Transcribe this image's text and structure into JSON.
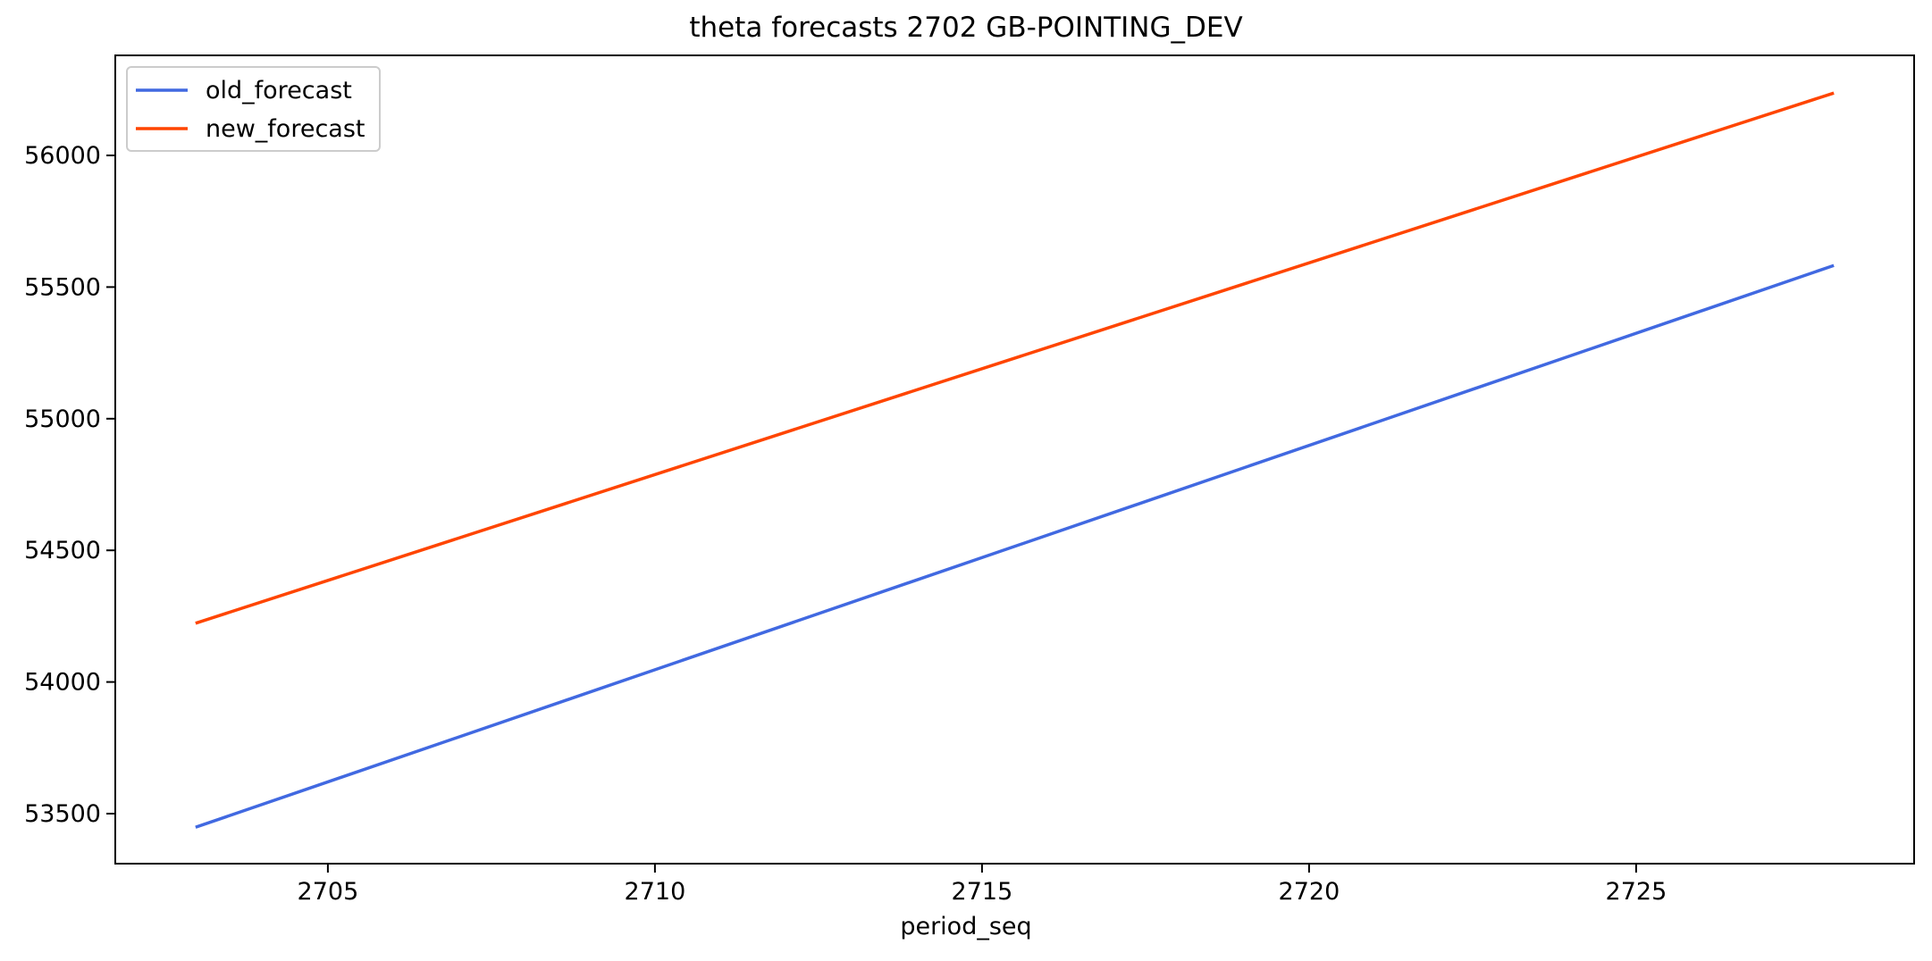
{
  "chart_data": {
    "type": "line",
    "title": "theta forecasts 2702 GB-POINTING_DEV",
    "xlabel": "period_seq",
    "ylabel": "",
    "xlim": [
      2701.75,
      2729.25
    ],
    "ylim": [
      53310,
      56380
    ],
    "x_ticks": [
      2705,
      2710,
      2715,
      2720,
      2725
    ],
    "y_ticks": [
      53500,
      54000,
      54500,
      55000,
      55500,
      56000
    ],
    "grid": false,
    "legend_position": "upper-left",
    "x": [
      2703,
      2728
    ],
    "series": [
      {
        "name": "old_forecast",
        "color": "#4169e1",
        "values": [
          53450,
          55580
        ]
      },
      {
        "name": "new_forecast",
        "color": "#ff4500",
        "values": [
          54225,
          56235
        ]
      }
    ]
  }
}
